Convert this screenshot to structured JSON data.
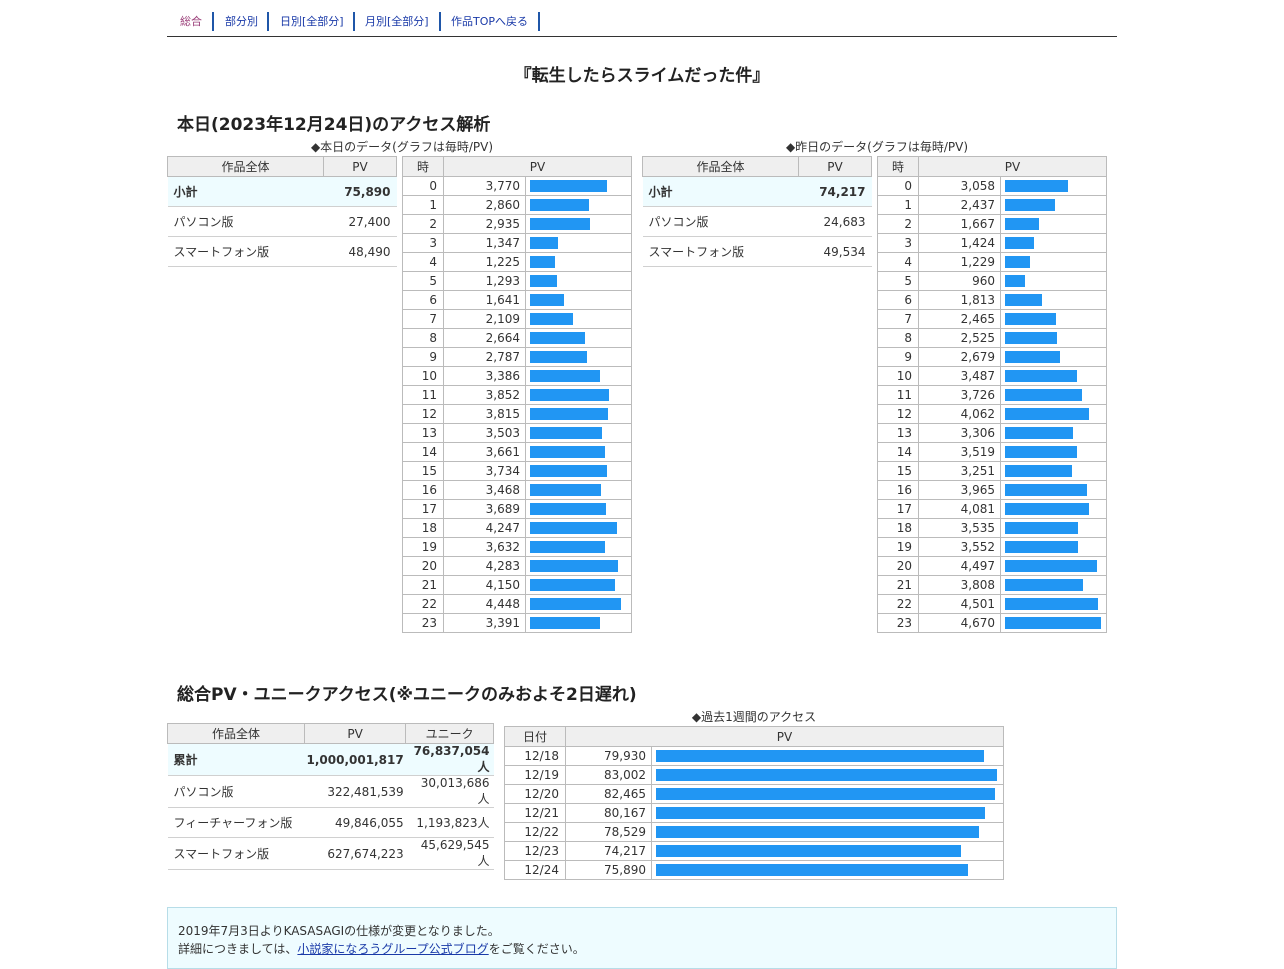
{
  "nav": {
    "items": [
      {
        "label": "総合",
        "current": true
      },
      {
        "label": "部分別",
        "current": false
      },
      {
        "label": "日別[全部分]",
        "current": false
      },
      {
        "label": "月別[全部分]",
        "current": false
      },
      {
        "label": "作品TOPへ戻る",
        "current": false
      }
    ]
  },
  "work_title": "『転生したらスライムだった件』",
  "today_section": {
    "heading": "本日(2023年12月24日)のアクセス解析",
    "today": {
      "caption": "◆本日のデータ(グラフは毎時/PV)",
      "summary_headers": [
        "作品全体",
        "PV"
      ],
      "summary_rows": [
        {
          "label": "小計",
          "value": "75,890"
        },
        {
          "label": "パソコン版",
          "value": "27,400"
        },
        {
          "label": "スマートフォン版",
          "value": "48,490"
        }
      ],
      "hourly_headers": [
        "時",
        "PV"
      ],
      "hourly": [
        {
          "hour": "0",
          "pv": "3,770",
          "v": 3770
        },
        {
          "hour": "1",
          "pv": "2,860",
          "v": 2860
        },
        {
          "hour": "2",
          "pv": "2,935",
          "v": 2935
        },
        {
          "hour": "3",
          "pv": "1,347",
          "v": 1347
        },
        {
          "hour": "4",
          "pv": "1,225",
          "v": 1225
        },
        {
          "hour": "5",
          "pv": "1,293",
          "v": 1293
        },
        {
          "hour": "6",
          "pv": "1,641",
          "v": 1641
        },
        {
          "hour": "7",
          "pv": "2,109",
          "v": 2109
        },
        {
          "hour": "8",
          "pv": "2,664",
          "v": 2664
        },
        {
          "hour": "9",
          "pv": "2,787",
          "v": 2787
        },
        {
          "hour": "10",
          "pv": "3,386",
          "v": 3386
        },
        {
          "hour": "11",
          "pv": "3,852",
          "v": 3852
        },
        {
          "hour": "12",
          "pv": "3,815",
          "v": 3815
        },
        {
          "hour": "13",
          "pv": "3,503",
          "v": 3503
        },
        {
          "hour": "14",
          "pv": "3,661",
          "v": 3661
        },
        {
          "hour": "15",
          "pv": "3,734",
          "v": 3734
        },
        {
          "hour": "16",
          "pv": "3,468",
          "v": 3468
        },
        {
          "hour": "17",
          "pv": "3,689",
          "v": 3689
        },
        {
          "hour": "18",
          "pv": "4,247",
          "v": 4247
        },
        {
          "hour": "19",
          "pv": "3,632",
          "v": 3632
        },
        {
          "hour": "20",
          "pv": "4,283",
          "v": 4283
        },
        {
          "hour": "21",
          "pv": "4,150",
          "v": 4150
        },
        {
          "hour": "22",
          "pv": "4,448",
          "v": 4448
        },
        {
          "hour": "23",
          "pv": "3,391",
          "v": 3391
        }
      ]
    },
    "yesterday": {
      "caption": "◆昨日のデータ(グラフは毎時/PV)",
      "summary_headers": [
        "作品全体",
        "PV"
      ],
      "summary_rows": [
        {
          "label": "小計",
          "value": "74,217"
        },
        {
          "label": "パソコン版",
          "value": "24,683"
        },
        {
          "label": "スマートフォン版",
          "value": "49,534"
        }
      ],
      "hourly_headers": [
        "時",
        "PV"
      ],
      "hourly": [
        {
          "hour": "0",
          "pv": "3,058",
          "v": 3058
        },
        {
          "hour": "1",
          "pv": "2,437",
          "v": 2437
        },
        {
          "hour": "2",
          "pv": "1,667",
          "v": 1667
        },
        {
          "hour": "3",
          "pv": "1,424",
          "v": 1424
        },
        {
          "hour": "4",
          "pv": "1,229",
          "v": 1229
        },
        {
          "hour": "5",
          "pv": "960",
          "v": 960
        },
        {
          "hour": "6",
          "pv": "1,813",
          "v": 1813
        },
        {
          "hour": "7",
          "pv": "2,465",
          "v": 2465
        },
        {
          "hour": "8",
          "pv": "2,525",
          "v": 2525
        },
        {
          "hour": "9",
          "pv": "2,679",
          "v": 2679
        },
        {
          "hour": "10",
          "pv": "3,487",
          "v": 3487
        },
        {
          "hour": "11",
          "pv": "3,726",
          "v": 3726
        },
        {
          "hour": "12",
          "pv": "4,062",
          "v": 4062
        },
        {
          "hour": "13",
          "pv": "3,306",
          "v": 3306
        },
        {
          "hour": "14",
          "pv": "3,519",
          "v": 3519
        },
        {
          "hour": "15",
          "pv": "3,251",
          "v": 3251
        },
        {
          "hour": "16",
          "pv": "3,965",
          "v": 3965
        },
        {
          "hour": "17",
          "pv": "4,081",
          "v": 4081
        },
        {
          "hour": "18",
          "pv": "3,535",
          "v": 3535
        },
        {
          "hour": "19",
          "pv": "3,552",
          "v": 3552
        },
        {
          "hour": "20",
          "pv": "4,497",
          "v": 4497
        },
        {
          "hour": "21",
          "pv": "3,808",
          "v": 3808
        },
        {
          "hour": "22",
          "pv": "4,501",
          "v": 4501
        },
        {
          "hour": "23",
          "pv": "4,670",
          "v": 4670
        }
      ]
    }
  },
  "total_section": {
    "heading": "総合PV・ユニークアクセス(※ユニークのみおよそ2日遅れ)",
    "summary_headers": [
      "作品全体",
      "PV",
      "ユニーク"
    ],
    "summary_rows": [
      {
        "label": "累計",
        "pv": "1,000,001,817",
        "unique": "76,837,054人"
      },
      {
        "label": "パソコン版",
        "pv": "322,481,539",
        "unique": "30,013,686人"
      },
      {
        "label": "フィーチャーフォン版",
        "pv": "49,846,055",
        "unique": "1,193,823人"
      },
      {
        "label": "スマートフォン版",
        "pv": "627,674,223",
        "unique": "45,629,545人"
      }
    ],
    "week_caption": "◆過去1週間のアクセス",
    "week_headers": [
      "日付",
      "PV"
    ],
    "week": [
      {
        "date": "12/18",
        "pv": "79,930",
        "v": 79930
      },
      {
        "date": "12/19",
        "pv": "83,002",
        "v": 83002
      },
      {
        "date": "12/20",
        "pv": "82,465",
        "v": 82465
      },
      {
        "date": "12/21",
        "pv": "80,167",
        "v": 80167
      },
      {
        "date": "12/22",
        "pv": "78,529",
        "v": 78529
      },
      {
        "date": "12/23",
        "pv": "74,217",
        "v": 74217
      },
      {
        "date": "12/24",
        "pv": "75,890",
        "v": 75890
      }
    ]
  },
  "notice": {
    "line1": "2019年7月3日よりKASASAGIの仕様が変更となりました。",
    "line2_prefix": "詳細につきましては、",
    "line2_link": "小説家になろうグループ公式ブログ",
    "line2_suffix": "をご覧ください。"
  },
  "colors": {
    "bar": "#2196f3",
    "subtotal_bg": "#eefcff",
    "nav_link": "#1a3aa8",
    "nav_current": "#9a3d78"
  }
}
